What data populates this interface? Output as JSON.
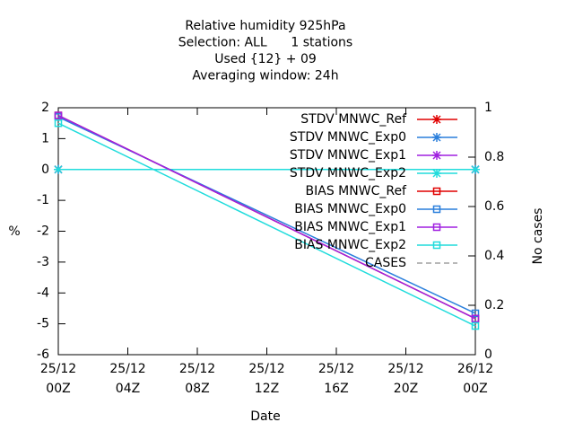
{
  "chart_data": {
    "type": "line",
    "title": [
      "Relative humidity 925hPa",
      "Selection: ALL      1 stations",
      "Used {12} + 09",
      "Averaging window: 24h"
    ],
    "xlabel": "Date",
    "ylabel": "%",
    "y2label": "No cases",
    "x": [
      0,
      24
    ],
    "xlim": [
      0,
      24
    ],
    "xticks": [
      {
        "value": 0,
        "label": "25/12\n00Z"
      },
      {
        "value": 4,
        "label": "25/12\n04Z"
      },
      {
        "value": 8,
        "label": "25/12\n08Z"
      },
      {
        "value": 12,
        "label": "25/12\n12Z"
      },
      {
        "value": 16,
        "label": "25/12\n16Z"
      },
      {
        "value": 20,
        "label": "25/12\n20Z"
      },
      {
        "value": 24,
        "label": "26/12\n00Z"
      }
    ],
    "ylim": [
      -6,
      2
    ],
    "yticks": [
      -6,
      -5,
      -4,
      -3,
      -2,
      -1,
      0,
      1,
      2
    ],
    "y2lim": [
      0,
      1
    ],
    "y2ticks": [
      0,
      0.2,
      0.4,
      0.6,
      0.8,
      1
    ],
    "series": [
      {
        "name": "STDV MNWC_Ref",
        "color": "#e00000",
        "marker": "star",
        "values": [
          0,
          0
        ]
      },
      {
        "name": "STDV MNWC_Exp0",
        "color": "#2a7fdc",
        "marker": "star",
        "values": [
          0,
          0
        ]
      },
      {
        "name": "STDV MNWC_Exp1",
        "color": "#a020e0",
        "marker": "star",
        "values": [
          0,
          0
        ]
      },
      {
        "name": "STDV MNWC_Exp2",
        "color": "#20dcdc",
        "marker": "star",
        "values": [
          0,
          0
        ]
      },
      {
        "name": "BIAS MNWC_Ref",
        "color": "#e00000",
        "marker": "square",
        "values": [
          1.75,
          -4.83
        ]
      },
      {
        "name": "BIAS MNWC_Exp0",
        "color": "#2a7fdc",
        "marker": "square",
        "values": [
          1.7,
          -4.66
        ]
      },
      {
        "name": "BIAS MNWC_Exp1",
        "color": "#a020e0",
        "marker": "square",
        "values": [
          1.75,
          -4.83
        ]
      },
      {
        "name": "BIAS MNWC_Exp2",
        "color": "#20dcdc",
        "marker": "square",
        "values": [
          1.5,
          -5.07
        ]
      },
      {
        "name": "CASES",
        "color": "#a0a0a0",
        "marker": "dash",
        "axis": "y2",
        "values": [
          null,
          null
        ]
      }
    ]
  }
}
